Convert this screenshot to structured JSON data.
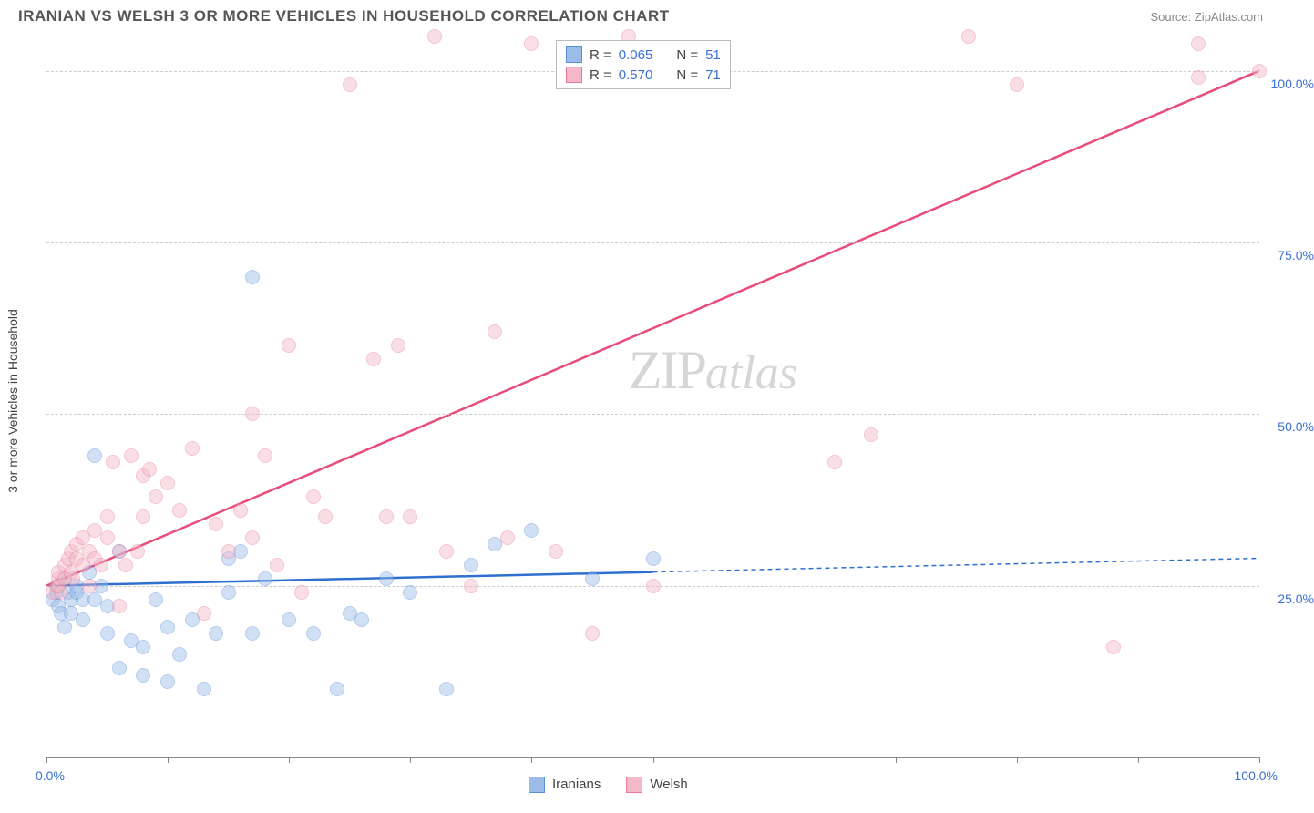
{
  "header": {
    "title": "IRANIAN VS WELSH 3 OR MORE VEHICLES IN HOUSEHOLD CORRELATION CHART",
    "source": "Source: ZipAtlas.com"
  },
  "chart": {
    "type": "scatter",
    "ylabel": "3 or more Vehicles in Household",
    "xlim": [
      0,
      100
    ],
    "ylim": [
      0,
      105
    ],
    "xticks_major": [
      0,
      100
    ],
    "xticks_minor": [
      10,
      20,
      30,
      40,
      50,
      60,
      70,
      80,
      90
    ],
    "yticks": [
      25,
      50,
      75,
      100
    ],
    "ytick_labels": [
      "25.0%",
      "50.0%",
      "75.0%",
      "100.0%"
    ],
    "xtick_labels": {
      "start": "0.0%",
      "end": "100.0%"
    },
    "background_color": "#ffffff",
    "grid_color": "#cccccc",
    "axis_color": "#888888",
    "tick_label_color": "#3b6fd6",
    "axis_label_color": "#444444",
    "marker_radius": 8,
    "marker_opacity": 0.45,
    "watermark": {
      "text_a": "ZIP",
      "text_b": "atlas",
      "color": "#bbbbbb"
    },
    "series": [
      {
        "name": "Iranians",
        "fill_color": "#9bbce8",
        "stroke_color": "#5a8fd6",
        "line_color": "#2f6fd0",
        "R": "0.065",
        "N": "51",
        "trend": {
          "x1": 0,
          "y1": 25,
          "x2": 50,
          "y2": 27
        },
        "trend_extend": {
          "x1": 50,
          "y1": 27,
          "x2": 100,
          "y2": 29
        },
        "points": [
          [
            0.5,
            23
          ],
          [
            0.8,
            24
          ],
          [
            1,
            22
          ],
          [
            1,
            25
          ],
          [
            1.2,
            21
          ],
          [
            1.5,
            26
          ],
          [
            1.5,
            19
          ],
          [
            1.8,
            24
          ],
          [
            2,
            23
          ],
          [
            2,
            21
          ],
          [
            2.5,
            24
          ],
          [
            2.5,
            25
          ],
          [
            3,
            23
          ],
          [
            3,
            20
          ],
          [
            3.5,
            27
          ],
          [
            4,
            23
          ],
          [
            4,
            44
          ],
          [
            4.5,
            25
          ],
          [
            5,
            18
          ],
          [
            5,
            22
          ],
          [
            6,
            13
          ],
          [
            6,
            30
          ],
          [
            7,
            17
          ],
          [
            8,
            16
          ],
          [
            8,
            12
          ],
          [
            9,
            23
          ],
          [
            10,
            11
          ],
          [
            10,
            19
          ],
          [
            11,
            15
          ],
          [
            12,
            20
          ],
          [
            13,
            10
          ],
          [
            14,
            18
          ],
          [
            15,
            24
          ],
          [
            15,
            29
          ],
          [
            16,
            30
          ],
          [
            17,
            18
          ],
          [
            17,
            70
          ],
          [
            18,
            26
          ],
          [
            20,
            20
          ],
          [
            22,
            18
          ],
          [
            24,
            10
          ],
          [
            25,
            21
          ],
          [
            26,
            20
          ],
          [
            28,
            26
          ],
          [
            30,
            24
          ],
          [
            33,
            10
          ],
          [
            35,
            28
          ],
          [
            37,
            31
          ],
          [
            40,
            33
          ],
          [
            45,
            26
          ],
          [
            50,
            29
          ]
        ]
      },
      {
        "name": "Welsh",
        "fill_color": "#f4b8c8",
        "stroke_color": "#e77a9b",
        "line_color": "#e94b7a",
        "R": "0.570",
        "N": "71",
        "trend": {
          "x1": 0,
          "y1": 25,
          "x2": 100,
          "y2": 100
        },
        "points": [
          [
            0.5,
            24
          ],
          [
            0.8,
            25
          ],
          [
            1,
            25
          ],
          [
            1,
            26
          ],
          [
            1,
            27
          ],
          [
            1.2,
            24
          ],
          [
            1.5,
            26
          ],
          [
            1.5,
            28
          ],
          [
            1.8,
            29
          ],
          [
            2,
            27
          ],
          [
            2,
            30
          ],
          [
            2.2,
            26
          ],
          [
            2.5,
            29
          ],
          [
            2.5,
            31
          ],
          [
            3,
            28
          ],
          [
            3,
            32
          ],
          [
            3.5,
            30
          ],
          [
            3.5,
            25
          ],
          [
            4,
            29
          ],
          [
            4,
            33
          ],
          [
            4.5,
            28
          ],
          [
            5,
            32
          ],
          [
            5,
            35
          ],
          [
            5.5,
            43
          ],
          [
            6,
            22
          ],
          [
            6,
            30
          ],
          [
            6.5,
            28
          ],
          [
            7,
            44
          ],
          [
            7.5,
            30
          ],
          [
            8,
            41
          ],
          [
            8,
            35
          ],
          [
            8.5,
            42
          ],
          [
            9,
            38
          ],
          [
            10,
            40
          ],
          [
            11,
            36
          ],
          [
            12,
            45
          ],
          [
            13,
            21
          ],
          [
            14,
            34
          ],
          [
            15,
            30
          ],
          [
            16,
            36
          ],
          [
            17,
            32
          ],
          [
            17,
            50
          ],
          [
            18,
            44
          ],
          [
            19,
            28
          ],
          [
            20,
            60
          ],
          [
            21,
            24
          ],
          [
            22,
            38
          ],
          [
            23,
            35
          ],
          [
            25,
            98
          ],
          [
            27,
            58
          ],
          [
            28,
            35
          ],
          [
            29,
            60
          ],
          [
            30,
            35
          ],
          [
            32,
            105
          ],
          [
            33,
            30
          ],
          [
            35,
            25
          ],
          [
            37,
            62
          ],
          [
            38,
            32
          ],
          [
            40,
            104
          ],
          [
            42,
            30
          ],
          [
            45,
            18
          ],
          [
            48,
            105
          ],
          [
            50,
            25
          ],
          [
            65,
            43
          ],
          [
            68,
            47
          ],
          [
            76,
            105
          ],
          [
            80,
            98
          ],
          [
            88,
            16
          ],
          [
            95,
            99
          ],
          [
            95,
            104
          ],
          [
            100,
            100
          ]
        ]
      }
    ],
    "legend_top": {
      "rows": [
        {
          "swatch_fill": "#9bbce8",
          "swatch_stroke": "#5a8fd6",
          "r_label": "R =",
          "r_val": "0.065",
          "n_label": "N =",
          "n_val": "51"
        },
        {
          "swatch_fill": "#f4b8c8",
          "swatch_stroke": "#e77a9b",
          "r_label": "R =",
          "r_val": "0.570",
          "n_label": "N =",
          "n_val": "71"
        }
      ]
    },
    "legend_bottom": {
      "items": [
        {
          "swatch_fill": "#9bbce8",
          "swatch_stroke": "#5a8fd6",
          "label": "Iranians"
        },
        {
          "swatch_fill": "#f4b8c8",
          "swatch_stroke": "#e77a9b",
          "label": "Welsh"
        }
      ]
    }
  }
}
